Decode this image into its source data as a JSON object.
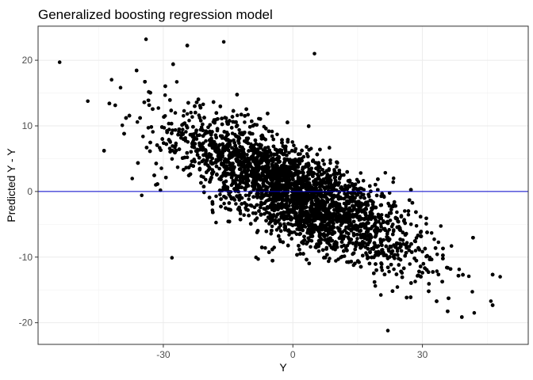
{
  "chart_data": {
    "type": "scatter",
    "title": "Generalized boosting regression model",
    "xlabel": "Y",
    "ylabel": "Predicted Y - Y",
    "xlim": [
      -59,
      54.5
    ],
    "ylim": [
      -23.3,
      25.2
    ],
    "x_ticks": [
      -30,
      0,
      30
    ],
    "y_ticks": [
      -20,
      -10,
      0,
      10,
      20
    ],
    "x_tick_labels": [
      "-30",
      "0",
      "30"
    ],
    "y_tick_labels": [
      "-20",
      "-10",
      "0",
      "10",
      "20"
    ],
    "hline": {
      "y": 0,
      "color": "#0000cc"
    },
    "grid": true,
    "point_color": "#000000",
    "n_points_approx": 6000,
    "trend": {
      "slope": -0.28,
      "intercept": 0
    },
    "outliers": [
      {
        "x": -54,
        "y": 19.7
      },
      {
        "x": -34,
        "y": 23.2
      },
      {
        "x": -16,
        "y": 22.8
      },
      {
        "x": 5,
        "y": 21
      },
      {
        "x": 42,
        "y": -18.5
      },
      {
        "x": 48,
        "y": -13
      },
      {
        "x": 22,
        "y": -21.2
      },
      {
        "x": -28,
        "y": -10.1
      },
      {
        "x": -35,
        "y": -0.6
      }
    ]
  }
}
